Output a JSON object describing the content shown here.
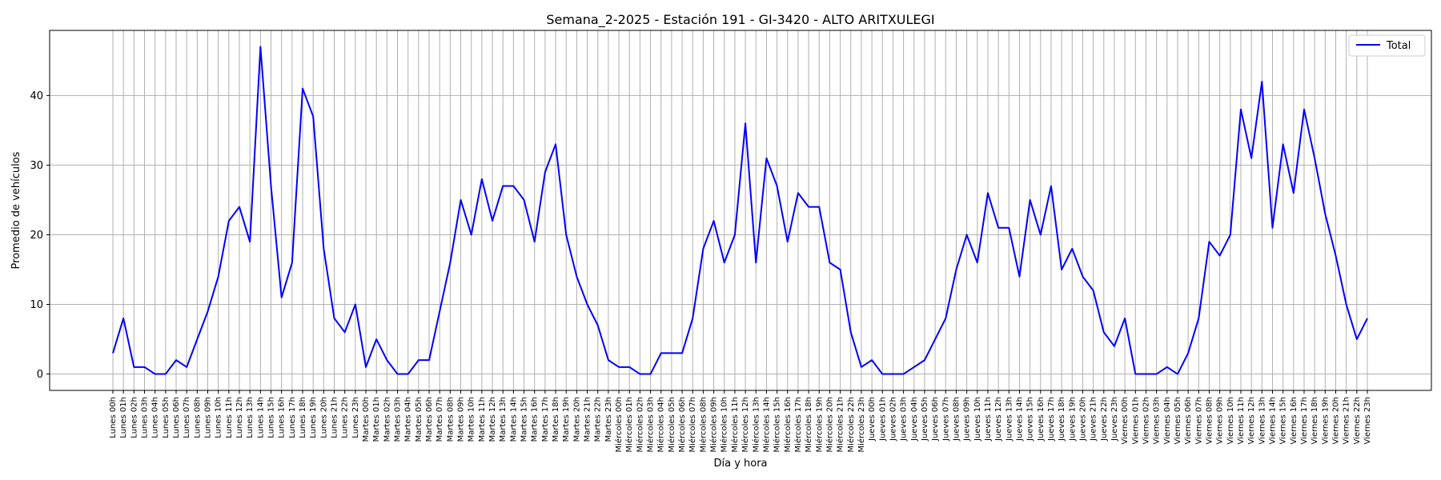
{
  "chart_data": {
    "type": "line",
    "title": "Semana_2-2025 - Estación 191 - GI-3420  - ALTO ARITXULEGI",
    "xlabel": "Día y hora",
    "ylabel": "Promedio de vehículos",
    "ylim": [
      -2.35,
      49.35
    ],
    "yticks": [
      0,
      10,
      20,
      30,
      40
    ],
    "grid": true,
    "legend_position": "top-right",
    "line_color": "#0000ff",
    "days": [
      "Lunes",
      "Martes",
      "Miércoles",
      "Jueves",
      "Viernes"
    ],
    "hours": [
      "00h",
      "01h",
      "02h",
      "03h",
      "04h",
      "05h",
      "06h",
      "07h",
      "08h",
      "09h",
      "10h",
      "11h",
      "12h",
      "13h",
      "14h",
      "15h",
      "16h",
      "17h",
      "18h",
      "19h",
      "20h",
      "21h",
      "22h",
      "23h"
    ],
    "series": [
      {
        "name": "Total",
        "values": [
          3,
          8,
          1,
          1,
          0,
          0,
          2,
          1,
          5,
          9,
          14,
          22,
          24,
          19,
          47,
          27,
          11,
          16,
          41,
          37,
          18,
          8,
          6,
          10,
          1,
          5,
          2,
          0,
          0,
          2,
          2,
          9,
          16,
          25,
          20,
          28,
          22,
          27,
          27,
          25,
          19,
          29,
          33,
          20,
          14,
          10,
          7,
          2,
          1,
          1,
          0,
          0,
          3,
          3,
          3,
          8,
          18,
          22,
          16,
          20,
          36,
          16,
          31,
          27,
          19,
          26,
          24,
          24,
          16,
          15,
          6,
          1,
          2,
          0,
          0,
          0,
          1,
          2,
          5,
          8,
          15,
          20,
          16,
          26,
          21,
          21,
          14,
          25,
          20,
          27,
          15,
          18,
          14,
          12,
          6,
          4,
          8,
          0,
          0,
          0,
          1,
          0,
          3,
          8,
          19,
          17,
          20,
          38,
          31,
          42,
          21,
          33,
          26,
          38,
          31,
          23,
          17,
          10,
          5,
          8
        ]
      }
    ]
  }
}
